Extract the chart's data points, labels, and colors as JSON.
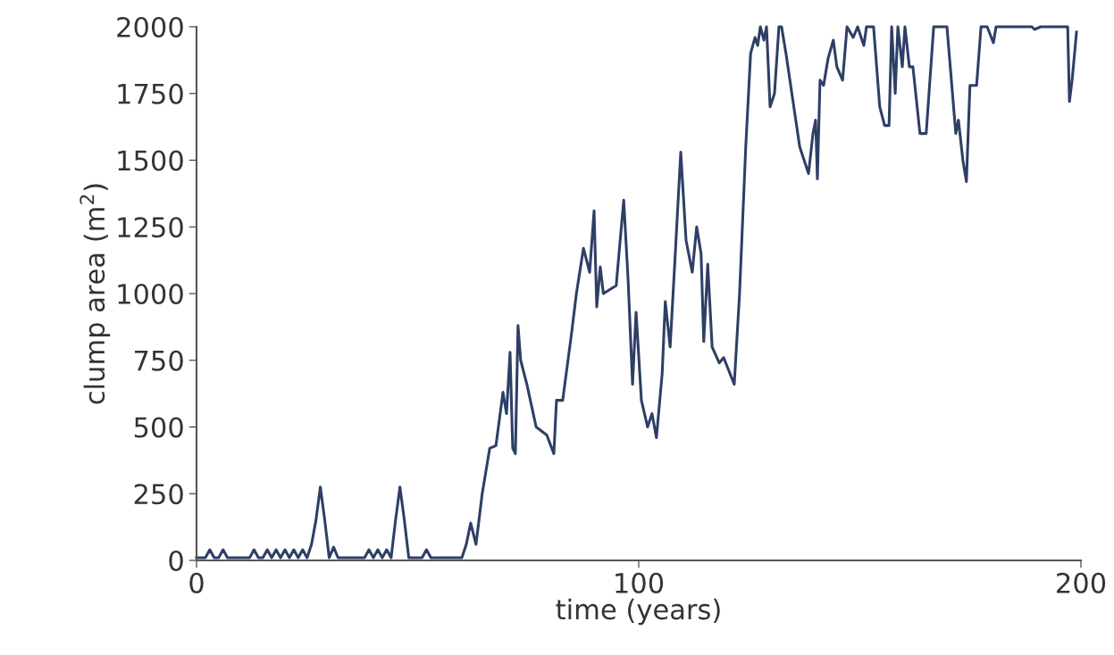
{
  "chart_data": {
    "type": "line",
    "xlabel": "time (years)",
    "ylabel": "clump area (m$^{2}$)",
    "xlim": [
      0,
      200
    ],
    "xticks": [
      0,
      100,
      200
    ],
    "ylim": [
      0,
      2000
    ],
    "yticks": [
      0,
      250,
      500,
      750,
      1000,
      1250,
      1500,
      1750,
      2000
    ],
    "grid": false,
    "legend": false,
    "marker": "none",
    "line_style": "solid",
    "series": [
      {
        "color": "#2e3f66",
        "x": [
          0,
          2,
          3,
          4,
          5,
          6,
          7,
          8,
          12,
          13,
          14,
          15,
          16,
          17,
          18,
          19,
          20,
          21,
          22,
          23,
          24,
          25,
          26,
          27,
          28,
          29,
          30,
          31,
          32,
          38,
          39,
          40,
          41,
          42,
          43,
          44,
          45,
          46,
          47,
          48,
          51,
          52,
          53,
          60,
          61,
          62,
          63.2,
          64.6,
          66.3,
          67.7,
          69.3,
          70.1,
          70.9,
          71.5,
          72.1,
          72.7,
          73.3,
          74.7,
          76.8,
          79.2,
          80.8,
          81.4,
          82.8,
          84.8,
          85.9,
          87.5,
          88.9,
          89.9,
          90.5,
          91.3,
          92,
          94.9,
          96.6,
          97.6,
          98.6,
          99.4,
          100.6,
          102,
          103,
          104,
          105.3,
          106,
          107.1,
          108.1,
          109.5,
          110.7,
          112.1,
          113.1,
          114.1,
          114.7,
          115.6,
          116.6,
          118.2,
          119.2,
          121.6,
          122.8,
          124.2,
          125.3,
          126.3,
          126.9,
          127.5,
          128.3,
          128.9,
          129.7,
          130.7,
          131.7,
          132.3,
          133.3,
          136.4,
          137.4,
          138.4,
          139.4,
          140,
          140.4,
          141,
          141.8,
          142.8,
          144,
          144.8,
          146.1,
          147.1,
          148.5,
          149.5,
          150.9,
          151.5,
          153.1,
          154.5,
          155.6,
          156.6,
          157.2,
          158,
          158.6,
          159.6,
          160.2,
          161.2,
          162,
          163.6,
          165,
          166.7,
          169.7,
          171.7,
          172.3,
          173.3,
          174.1,
          174.9,
          176.4,
          177.4,
          178.8,
          180.2,
          180.8,
          188.9,
          189.5,
          190.9,
          197,
          197.4,
          198,
          199
        ],
        "values": [
          10,
          10,
          40,
          10,
          10,
          40,
          10,
          10,
          10,
          40,
          10,
          10,
          40,
          10,
          40,
          10,
          40,
          10,
          40,
          10,
          40,
          10,
          60,
          150,
          275,
          150,
          10,
          50,
          10,
          10,
          40,
          10,
          40,
          10,
          40,
          10,
          150,
          275,
          150,
          10,
          10,
          40,
          10,
          10,
          60,
          140,
          60,
          250,
          420,
          430,
          630,
          550,
          780,
          420,
          400,
          880,
          750,
          660,
          500,
          470,
          400,
          600,
          600,
          850,
          1000,
          1170,
          1080,
          1310,
          950,
          1100,
          1000,
          1030,
          1350,
          1050,
          660,
          930,
          600,
          500,
          550,
          460,
          700,
          970,
          800,
          1100,
          1530,
          1200,
          1080,
          1250,
          1150,
          820,
          1110,
          800,
          740,
          760,
          660,
          1000,
          1550,
          1900,
          1960,
          1930,
          2000,
          1950,
          2000,
          1700,
          1750,
          2000,
          2000,
          1900,
          1550,
          1500,
          1450,
          1600,
          1650,
          1430,
          1800,
          1780,
          1880,
          1950,
          1850,
          1800,
          2000,
          1960,
          2000,
          1930,
          2000,
          2000,
          1700,
          1630,
          1630,
          2000,
          1750,
          2000,
          1850,
          2000,
          1850,
          1850,
          1600,
          1600,
          2000,
          2000,
          1600,
          1650,
          1500,
          1420,
          1780,
          1780,
          2000,
          2000,
          1940,
          2000,
          2000,
          1990,
          2000,
          2000,
          1720,
          1800,
          1980
        ]
      }
    ]
  }
}
